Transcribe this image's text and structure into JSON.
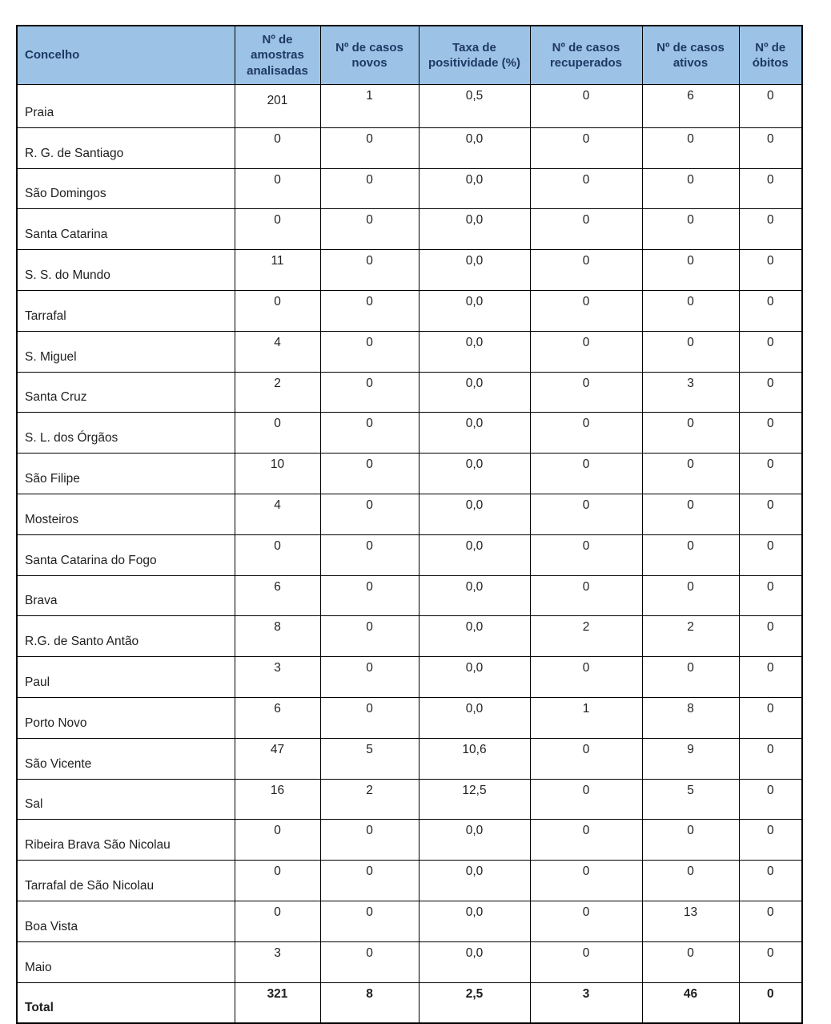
{
  "colors": {
    "header_bg": "#9CC3E6",
    "header_text": "#1F3864",
    "border": "#000000"
  },
  "table": {
    "columns": [
      {
        "label": "Concelho"
      },
      {
        "label": "Nº de amostras analisadas"
      },
      {
        "label": "Nº de casos novos"
      },
      {
        "label": "Taxa de positividade (%)"
      },
      {
        "label": "Nº de casos recuperados"
      },
      {
        "label": "Nº de casos ativos"
      },
      {
        "label": "Nº de óbitos"
      }
    ],
    "rows": [
      {
        "concelho": "Praia",
        "values": [
          "201",
          "1",
          "0,5",
          "0",
          "6",
          "0"
        ]
      },
      {
        "concelho": "R. G. de Santiago",
        "values": [
          "0",
          "0",
          "0,0",
          "0",
          "0",
          "0"
        ]
      },
      {
        "concelho": "São Domingos",
        "values": [
          "0",
          "0",
          "0,0",
          "0",
          "0",
          "0"
        ]
      },
      {
        "concelho": "Santa Catarina",
        "values": [
          "0",
          "0",
          "0,0",
          "0",
          "0",
          "0"
        ]
      },
      {
        "concelho": "S. S. do Mundo",
        "values": [
          "11",
          "0",
          "0,0",
          "0",
          "0",
          "0"
        ]
      },
      {
        "concelho": "Tarrafal",
        "values": [
          "0",
          "0",
          "0,0",
          "0",
          "0",
          "0"
        ]
      },
      {
        "concelho": "S. Miguel",
        "values": [
          "4",
          "0",
          "0,0",
          "0",
          "0",
          "0"
        ]
      },
      {
        "concelho": "Santa Cruz",
        "values": [
          "2",
          "0",
          "0,0",
          "0",
          "3",
          "0"
        ]
      },
      {
        "concelho": "S. L. dos Órgãos",
        "values": [
          "0",
          "0",
          "0,0",
          "0",
          "0",
          "0"
        ]
      },
      {
        "concelho": "São Filipe",
        "values": [
          "10",
          "0",
          "0,0",
          "0",
          "0",
          "0"
        ]
      },
      {
        "concelho": "Mosteiros",
        "values": [
          "4",
          "0",
          "0,0",
          "0",
          "0",
          "0"
        ]
      },
      {
        "concelho": "Santa Catarina do Fogo",
        "values": [
          "0",
          "0",
          "0,0",
          "0",
          "0",
          "0"
        ]
      },
      {
        "concelho": "Brava",
        "values": [
          "6",
          "0",
          "0,0",
          "0",
          "0",
          "0"
        ]
      },
      {
        "concelho": "R.G. de Santo Antão",
        "values": [
          "8",
          "0",
          "0,0",
          "2",
          "2",
          "0"
        ]
      },
      {
        "concelho": "Paul",
        "values": [
          "3",
          "0",
          "0,0",
          "0",
          "0",
          "0"
        ]
      },
      {
        "concelho": "Porto Novo",
        "values": [
          "6",
          "0",
          "0,0",
          "1",
          "8",
          "0"
        ]
      },
      {
        "concelho": "São Vicente",
        "values": [
          "47",
          "5",
          "10,6",
          "0",
          "9",
          "0"
        ]
      },
      {
        "concelho": "Sal",
        "values": [
          "16",
          "2",
          "12,5",
          "0",
          "5",
          "0"
        ]
      },
      {
        "concelho": "Ribeira Brava São Nicolau",
        "values": [
          "0",
          "0",
          "0,0",
          "0",
          "0",
          "0"
        ]
      },
      {
        "concelho": "Tarrafal de São Nicolau",
        "values": [
          "0",
          "0",
          "0,0",
          "0",
          "0",
          "0"
        ]
      },
      {
        "concelho": "Boa Vista",
        "values": [
          "0",
          "0",
          "0,0",
          "0",
          "13",
          "0"
        ]
      },
      {
        "concelho": "Maio",
        "values": [
          "3",
          "0",
          "0,0",
          "0",
          "0",
          "0"
        ]
      }
    ],
    "total": {
      "label": "Total",
      "values": [
        "321",
        "8",
        "2,5",
        "3",
        "46",
        "0"
      ]
    }
  }
}
